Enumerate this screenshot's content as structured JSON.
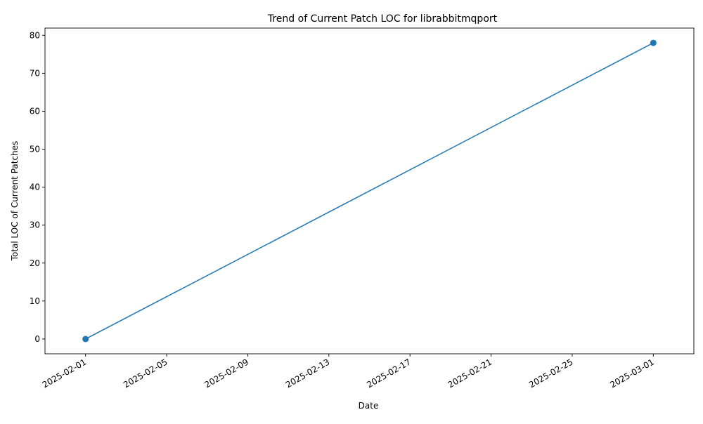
{
  "chart_data": {
    "type": "line",
    "title": "Trend of Current Patch LOC for librabbitmqport",
    "xlabel": "Date",
    "ylabel": "Total LOC of Current Patches",
    "x_type": "date",
    "xlim": [
      "2025-01-30",
      "2025-03-03"
    ],
    "ylim": [
      -3.9,
      81.9
    ],
    "x_ticks": [
      "2025-02-01",
      "2025-02-05",
      "2025-02-09",
      "2025-02-13",
      "2025-02-17",
      "2025-02-21",
      "2025-02-25",
      "2025-03-01"
    ],
    "y_ticks": [
      0,
      10,
      20,
      30,
      40,
      50,
      60,
      70,
      80
    ],
    "grid": false,
    "legend": false,
    "series": [
      {
        "color": "#1f77b4",
        "marker": "circle",
        "points": [
          {
            "x": "2025-02-01",
            "y": 0
          },
          {
            "x": "2025-03-01",
            "y": 78
          }
        ]
      }
    ]
  }
}
